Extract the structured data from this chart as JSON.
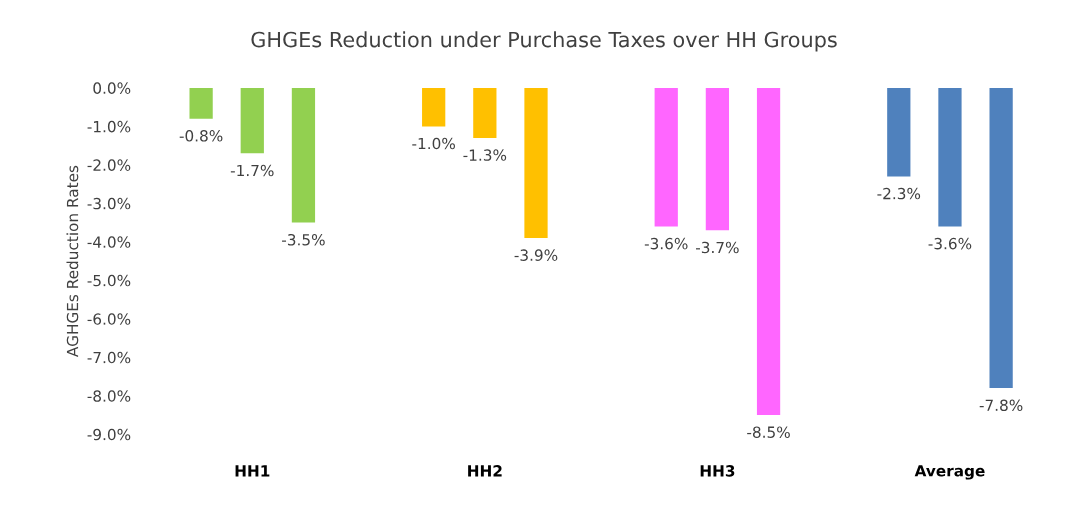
{
  "chart_data": {
    "type": "bar",
    "title": "GHGEs Reduction under Purchase Taxes over HH Groups",
    "ylabel": "AGHGEs Reduction Rates",
    "categories": [
      "HH1",
      "HH2",
      "HH3",
      "Average"
    ],
    "series": [
      {
        "colors": [
          "#92d050",
          "#ffc000",
          "#ff66ff",
          "#4f81bd"
        ],
        "values": [
          -0.8,
          -1.0,
          -3.6,
          -2.3
        ],
        "value_labels": [
          "-0.8%",
          "-1.0%",
          "-3.6%",
          "-2.3%"
        ]
      },
      {
        "colors": [
          "#92d050",
          "#ffc000",
          "#ff66ff",
          "#4f81bd"
        ],
        "values": [
          -1.7,
          -1.3,
          -3.7,
          -3.6
        ],
        "value_labels": [
          "-1.7%",
          "-1.3%",
          "-3.7%",
          "-3.6%"
        ]
      },
      {
        "colors": [
          "#92d050",
          "#ffc000",
          "#ff66ff",
          "#4f81bd"
        ],
        "values": [
          -3.5,
          -3.9,
          -8.5,
          -7.8
        ],
        "value_labels": [
          "-3.5%",
          "-3.9%",
          "-8.5%",
          "-7.8%"
        ]
      }
    ],
    "ylim": [
      -9,
      0
    ],
    "yticks": [
      {
        "value": 0,
        "label": "0.0%"
      },
      {
        "value": -1,
        "label": "-1.0%"
      },
      {
        "value": -2,
        "label": "-2.0%"
      },
      {
        "value": -3,
        "label": "-3.0%"
      },
      {
        "value": -4,
        "label": "-4.0%"
      },
      {
        "value": -5,
        "label": "-5.0%"
      },
      {
        "value": -6,
        "label": "-6.0%"
      },
      {
        "value": -7,
        "label": "-7.0%"
      },
      {
        "value": -8,
        "label": "-8.0%"
      },
      {
        "value": -9,
        "label": "-9.0%"
      }
    ],
    "grid": false
  }
}
